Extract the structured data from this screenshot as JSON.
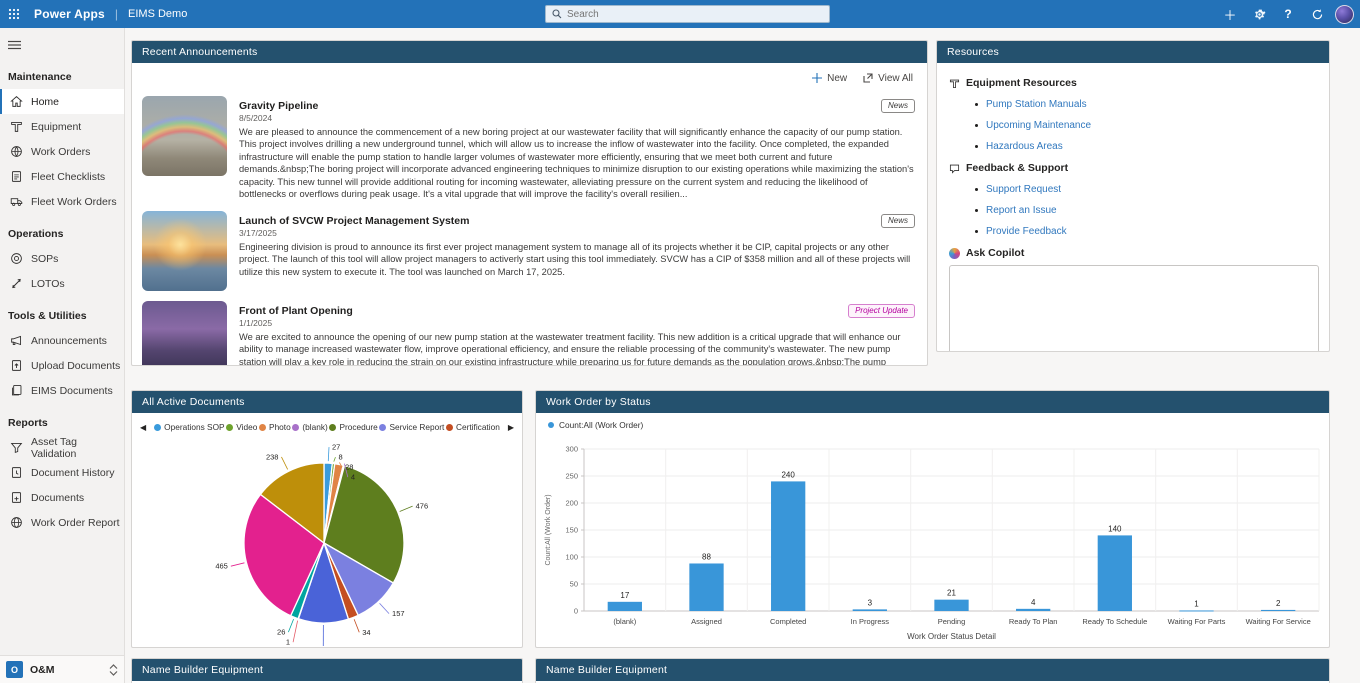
{
  "top_bar": {
    "brand": "Power Apps",
    "app_name": "EIMS Demo",
    "search_placeholder": "Search",
    "icons": [
      "waffle-icon",
      "add-icon",
      "settings-gear-icon",
      "help-icon",
      "sync-icon",
      "user-avatar"
    ],
    "color": "#2372b8"
  },
  "sidebar": {
    "sections": [
      {
        "title": "Maintenance",
        "items": [
          {
            "label": "Home",
            "icon": "home-icon",
            "selected": true
          },
          {
            "label": "Equipment",
            "icon": "equipment-icon",
            "selected": false
          },
          {
            "label": "Work Orders",
            "icon": "work-orders-icon",
            "selected": false
          },
          {
            "label": "Fleet Checklists",
            "icon": "checklist-icon",
            "selected": false
          },
          {
            "label": "Fleet Work Orders",
            "icon": "truck-icon",
            "selected": false
          }
        ]
      },
      {
        "title": "Operations",
        "items": [
          {
            "label": "SOPs",
            "icon": "target-icon",
            "selected": false
          },
          {
            "label": "LOTOs",
            "icon": "link-icon",
            "selected": false
          }
        ]
      },
      {
        "title": "Tools & Utilities",
        "items": [
          {
            "label": "Announcements",
            "icon": "megaphone-icon",
            "selected": false
          },
          {
            "label": "Upload Documents",
            "icon": "upload-document-icon",
            "selected": false
          },
          {
            "label": "EIMS Documents",
            "icon": "documents-stack-icon",
            "selected": false
          }
        ]
      },
      {
        "title": "Reports",
        "items": [
          {
            "label": "Asset Tag Validation",
            "icon": "filter-icon",
            "selected": false
          },
          {
            "label": "Document History",
            "icon": "document-history-icon",
            "selected": false
          },
          {
            "label": "Documents",
            "icon": "document-icon",
            "selected": false
          },
          {
            "label": "Work Order Report",
            "icon": "globe-icon",
            "selected": false
          }
        ]
      }
    ],
    "environment": {
      "badge": "O",
      "name": "O&M"
    }
  },
  "announcements": {
    "title": "Recent Announcements",
    "new_label": "New",
    "view_all_label": "View All",
    "items": [
      {
        "title": "Gravity Pipeline",
        "date": "8/5/2024",
        "badge": "News",
        "body": "We are pleased to announce the commencement of a new boring project at our wastewater facility that will significantly enhance the capacity of our pump station. This project involves drilling a new underground tunnel, which will allow us to increase the inflow of wastewater into the facility. Once completed, the expanded infrastructure will enable the pump station to handle larger volumes of wastewater more efficiently, ensuring that we meet both current and future demands.&nbsp;The boring project will incorporate advanced engineering techniques to minimize disruption to our existing operations while maximizing the station's capacity. This new tunnel will provide additional routing for incoming wastewater, alleviating pressure on the current system and reducing the likelihood of bottlenecks or overflows during peak usage. It's a vital upgrade that will improve the facility's overall resilien..."
      },
      {
        "title": "Launch of SVCW Project Management System",
        "date": "3/17/2025",
        "badge": "News",
        "body": "Engineering division is proud to announce its first ever project management system to manage all of its projects whether it be CIP, capital projects or any other project. The launch of this tool will allow project managers to activerly start using this tool immediately. SVCW has a CIP of $358 million and all of these projects will utilize this new system to execute it. The tool was launched on March 17, 2025."
      },
      {
        "title": "Front of Plant Opening",
        "date": "1/1/2025",
        "badge": "Project Update",
        "body": "We are excited to announce the opening of our new pump station at the wastewater treatment facility. This new addition is a critical upgrade that will enhance our ability to manage increased wastewater flow, improve operational efficiency, and ensure the reliable processing of the community's wastewater. The new pump station will play a key role in reducing the strain on our existing infrastructure while preparing us for future demands as the population grows.&nbsp;The pump station is equipped with state-of-the-art technology designed to optimize energy consumption, automate critical processes, and provide real-time monitoring. Its advanced control systems will allow us to track performance and identify any potential issues early, minimizing downtime and improving the overall reliability of our operations. Additionally, the station has built-in redundancies to ensure continuous operation in the eve..."
      }
    ]
  },
  "resources": {
    "title": "Resources",
    "groups": [
      {
        "heading": "Equipment Resources",
        "icon": "equipment-icon",
        "links": [
          "Pump Station Manuals",
          "Upcoming Maintenance",
          "Hazardous Areas"
        ]
      },
      {
        "heading": "Feedback & Support",
        "icon": "feedback-icon",
        "links": [
          "Support Request",
          "Report an Issue",
          "Provide Feedback"
        ]
      }
    ],
    "copilot_heading": "Ask Copilot"
  },
  "chart_data": [
    {
      "type": "pie",
      "title": "All Active Documents",
      "legend_position": "top",
      "legend_scrollable": true,
      "slices": [
        {
          "label": "Operations SOP",
          "value": 27,
          "color": "#3a9bdc",
          "in_visible_legend": true
        },
        {
          "label": "Video",
          "value": 8,
          "color": "#6ea32d",
          "in_visible_legend": true
        },
        {
          "label": "Photo",
          "value": 28,
          "color": "#e08445",
          "in_visible_legend": true
        },
        {
          "label": "(blank)",
          "value": 4,
          "color": "#a871c9",
          "in_visible_legend": true
        },
        {
          "label": "Procedure",
          "value": 476,
          "color": "#5e7e1e",
          "in_visible_legend": true
        },
        {
          "label": "Service Report",
          "value": 157,
          "color": "#7b80e0",
          "in_visible_legend": true
        },
        {
          "label": "Certification",
          "value": 34,
          "color": "#c44e22",
          "in_visible_legend": true
        },
        {
          "label": "",
          "value": 165,
          "color": "#4a63d8",
          "in_visible_legend": false
        },
        {
          "label": "",
          "value": 1,
          "color": "#e45c68",
          "in_visible_legend": false
        },
        {
          "label": "",
          "value": 26,
          "color": "#00a5a0",
          "in_visible_legend": false
        },
        {
          "label": "",
          "value": 465,
          "color": "#e3218e",
          "in_visible_legend": false
        },
        {
          "label": "",
          "value": 238,
          "color": "#be8f0a",
          "in_visible_legend": false
        }
      ]
    },
    {
      "type": "bar",
      "title": "Work Order by Status",
      "legend": "Count:All (Work Order)",
      "ylabel": "Count:All (Work Order)",
      "xlabel": "Work Order Status Detail",
      "categories": [
        "(blank)",
        "Assigned",
        "Completed",
        "In Progress",
        "Pending",
        "Ready To Plan",
        "Ready To Schedule",
        "Waiting For Parts",
        "Waiting For Service"
      ],
      "values": [
        17,
        88,
        240,
        3,
        21,
        4,
        140,
        1,
        2
      ],
      "ylim": [
        0,
        300
      ],
      "yticks": [
        0,
        50,
        100,
        150,
        200,
        250,
        300
      ],
      "grid": true,
      "bar_color": "#3996d9"
    }
  ],
  "bottom_panels": [
    {
      "title": "Name Builder Equipment"
    },
    {
      "title": "Name Builder Equipment"
    }
  ]
}
